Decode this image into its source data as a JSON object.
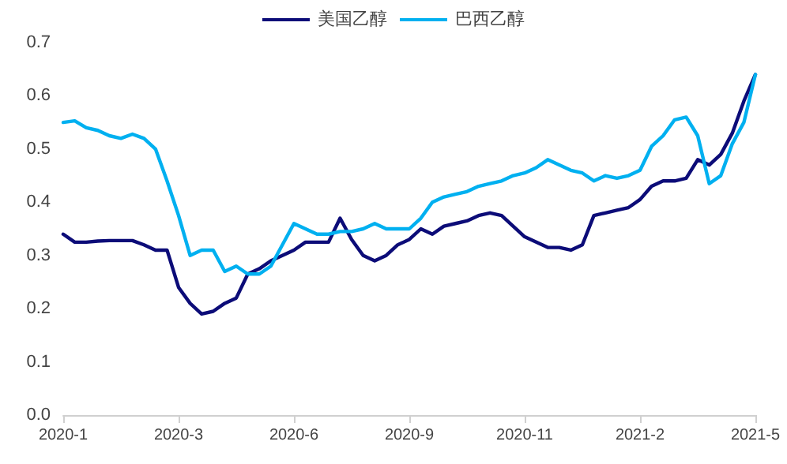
{
  "chart_data": {
    "type": "line",
    "categories": [
      "2020-1",
      null,
      null,
      null,
      null,
      null,
      null,
      null,
      null,
      null,
      "2020-3",
      null,
      null,
      null,
      null,
      null,
      null,
      null,
      null,
      null,
      "2020-6",
      null,
      null,
      null,
      null,
      null,
      null,
      null,
      null,
      null,
      "2020-9",
      null,
      null,
      null,
      null,
      null,
      null,
      null,
      null,
      null,
      "2020-11",
      null,
      null,
      null,
      null,
      null,
      null,
      null,
      null,
      null,
      "2021-2",
      null,
      null,
      null,
      null,
      null,
      null,
      null,
      null,
      null,
      "2021-5"
    ],
    "series": [
      {
        "name": "美国乙醇",
        "color": "#0c0c78",
        "values": [
          0.34,
          0.325,
          0.325,
          0.327,
          0.328,
          0.328,
          0.328,
          0.32,
          0.31,
          0.31,
          0.24,
          0.21,
          0.19,
          0.195,
          0.21,
          0.22,
          0.265,
          0.275,
          0.29,
          0.3,
          0.31,
          0.325,
          0.325,
          0.325,
          0.37,
          0.33,
          0.3,
          0.29,
          0.3,
          0.32,
          0.33,
          0.35,
          0.34,
          0.355,
          0.36,
          0.365,
          0.375,
          0.38,
          0.375,
          0.355,
          0.335,
          0.325,
          0.315,
          0.315,
          0.31,
          0.32,
          0.375,
          0.38,
          0.385,
          0.39,
          0.405,
          0.43,
          0.44,
          0.44,
          0.445,
          0.48,
          0.47,
          0.49,
          0.53,
          0.59,
          0.64
        ]
      },
      {
        "name": "巴西乙醇",
        "color": "#00b0f0",
        "values": [
          0.55,
          0.553,
          0.54,
          0.535,
          0.525,
          0.52,
          0.528,
          0.52,
          0.5,
          0.44,
          0.375,
          0.3,
          0.31,
          0.31,
          0.27,
          0.28,
          0.265,
          0.265,
          0.28,
          0.32,
          0.36,
          0.35,
          0.34,
          0.34,
          0.345,
          0.345,
          0.35,
          0.36,
          0.35,
          0.35,
          0.35,
          0.37,
          0.4,
          0.41,
          0.415,
          0.42,
          0.43,
          0.435,
          0.44,
          0.45,
          0.455,
          0.465,
          0.48,
          0.47,
          0.46,
          0.455,
          0.44,
          0.45,
          0.445,
          0.45,
          0.46,
          0.505,
          0.525,
          0.555,
          0.56,
          0.525,
          0.435,
          0.45,
          0.51,
          0.55,
          0.64
        ]
      }
    ],
    "ylim": [
      0,
      0.7
    ],
    "yticks": [
      {
        "value": 0,
        "label": "0.0"
      },
      0.1,
      0.2,
      0.3,
      0.4,
      0.5,
      0.6,
      0.7
    ],
    "grid": false,
    "legend": "top",
    "marker": "none",
    "line_style": "solid"
  }
}
